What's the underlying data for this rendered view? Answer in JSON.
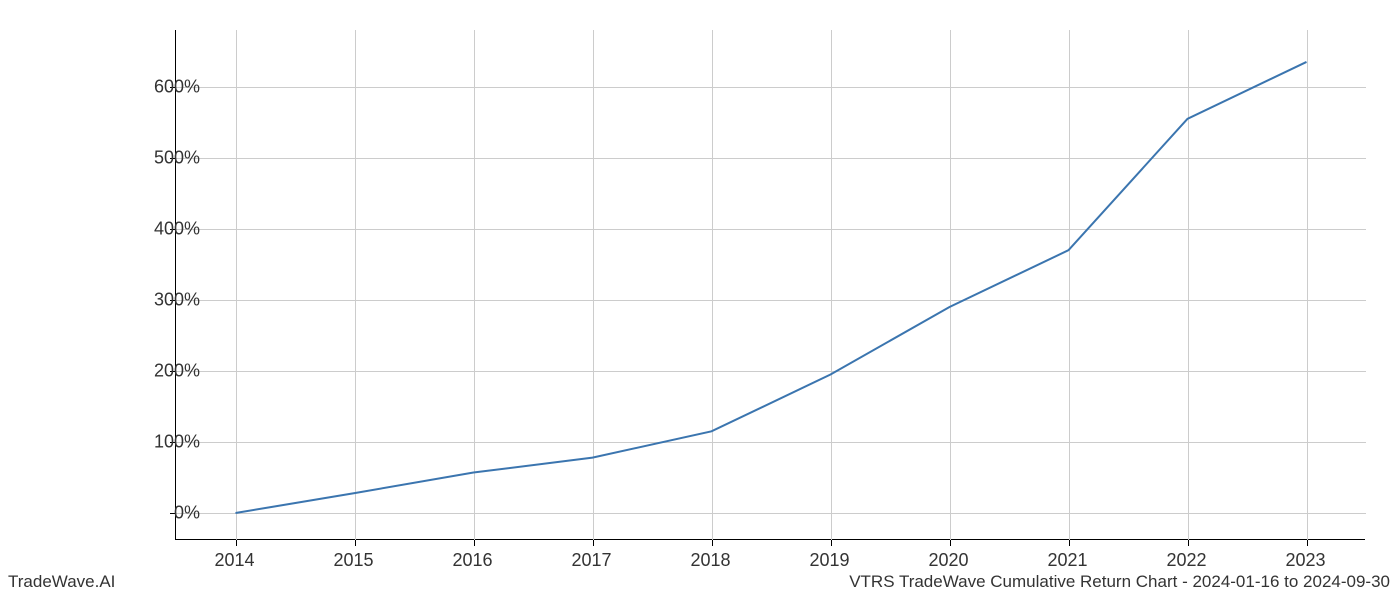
{
  "chart": {
    "type": "line",
    "x_years": [
      2014,
      2015,
      2016,
      2017,
      2018,
      2019,
      2020,
      2021,
      2022,
      2023
    ],
    "y_values": [
      0,
      28,
      57,
      78,
      115,
      195,
      290,
      370,
      555,
      635
    ],
    "line_color": "#3b75af",
    "line_width": 2,
    "xlim": [
      2013.5,
      2023.5
    ],
    "ylim": [
      -38,
      680
    ],
    "x_ticks": [
      2014,
      2015,
      2016,
      2017,
      2018,
      2019,
      2020,
      2021,
      2022,
      2023
    ],
    "x_tick_labels": [
      "2014",
      "2015",
      "2016",
      "2017",
      "2018",
      "2019",
      "2020",
      "2021",
      "2022",
      "2023"
    ],
    "y_ticks": [
      0,
      100,
      200,
      300,
      400,
      500,
      600
    ],
    "y_tick_labels": [
      "0%",
      "100%",
      "200%",
      "300%",
      "400%",
      "500%",
      "600%"
    ],
    "grid_color": "#cccccc",
    "background_color": "#ffffff",
    "axis_color": "#000000",
    "tick_fontsize": 18,
    "footer_fontsize": 17
  },
  "footer": {
    "left": "TradeWave.AI",
    "right": "VTRS TradeWave Cumulative Return Chart - 2024-01-16 to 2024-09-30"
  }
}
